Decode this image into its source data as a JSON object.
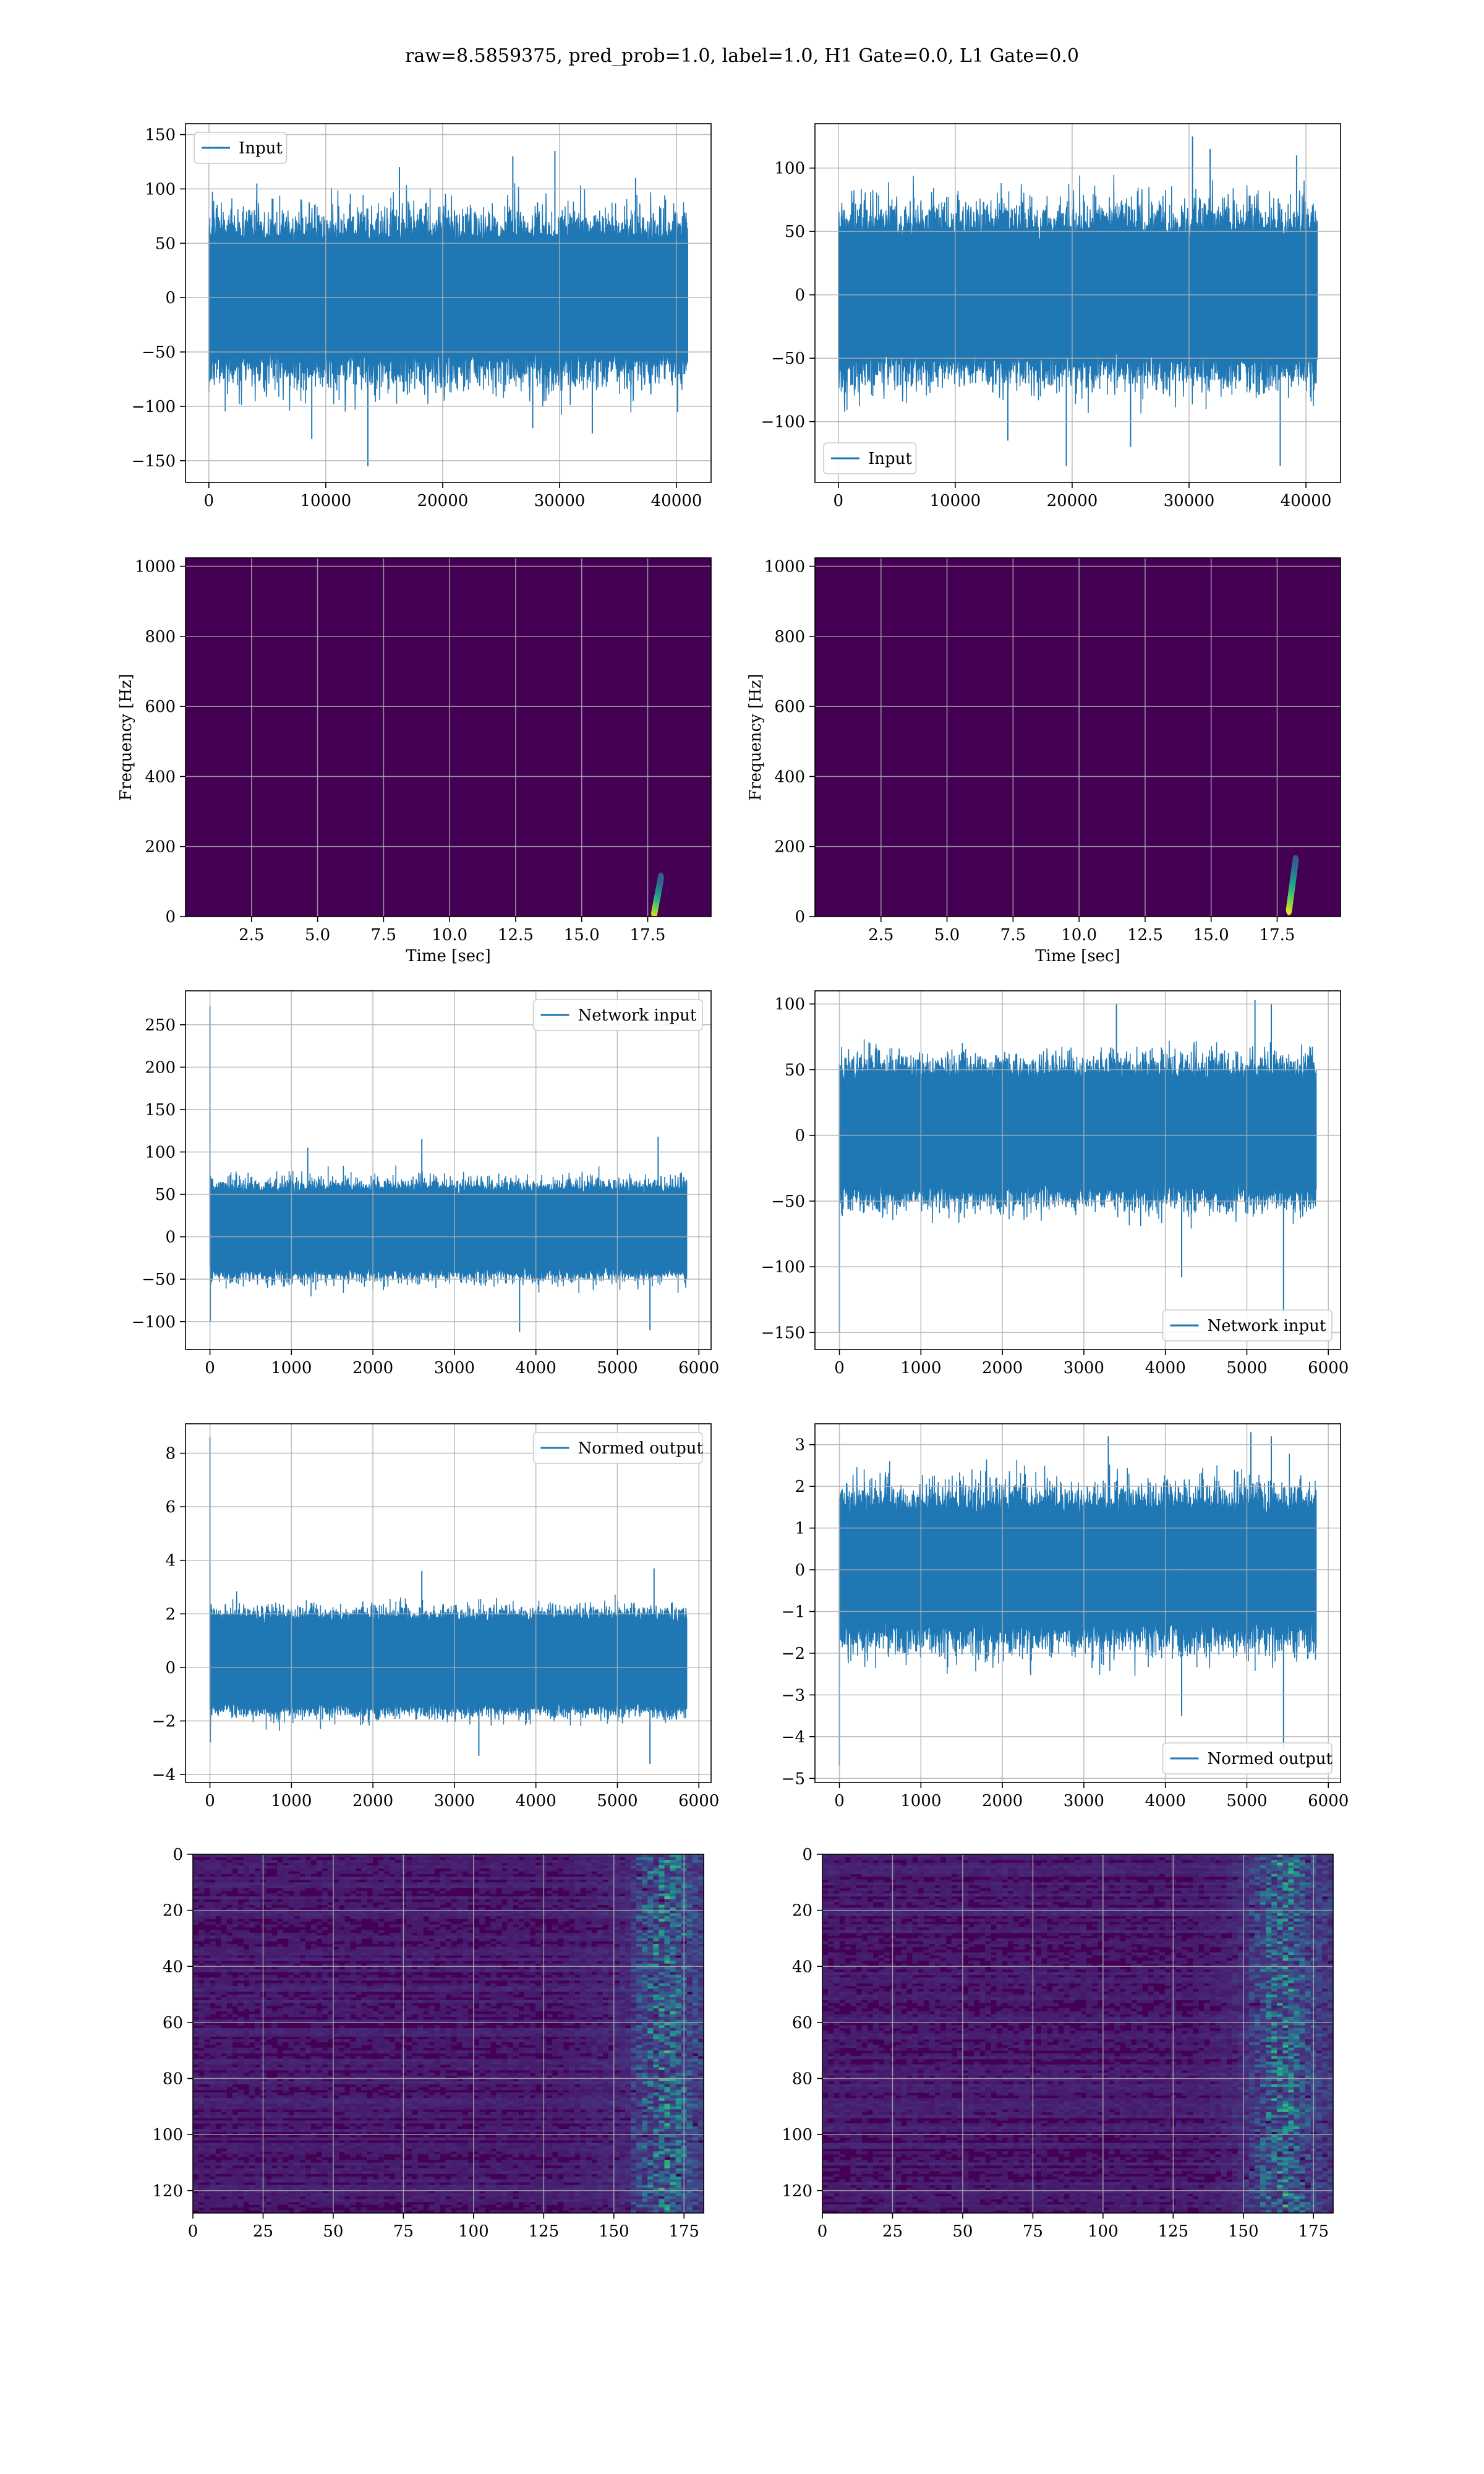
{
  "figure": {
    "suptitle": "raw=8.5859375, pred_prob=1.0, label=1.0, H1 Gate=0.0, L1 Gate=0.0",
    "colors": {
      "line": "#1f77b4",
      "grid": "#b0b0b0",
      "spine": "#000000",
      "heat_bg": "#440154"
    }
  },
  "chart_data": [
    {
      "id": "h1-input",
      "type": "line",
      "title": "",
      "xlabel": "",
      "ylabel": "",
      "legend": {
        "entries": [
          "Input"
        ],
        "placement": "upper left"
      },
      "xlim": [
        -2000,
        42960
      ],
      "ylim": [
        -170,
        160
      ],
      "xticks": [
        0,
        10000,
        20000,
        30000,
        40000
      ],
      "xticklabels": [
        "0",
        "10000",
        "20000",
        "30000",
        "40000"
      ],
      "yticks": [
        -150,
        -100,
        -50,
        0,
        50,
        100,
        150
      ],
      "yticklabels": [
        "−150",
        "−100",
        "−50",
        "0",
        "50",
        "100",
        "150"
      ],
      "grid": true,
      "series": [
        {
          "name": "Input",
          "x_range": [
            0,
            40960
          ],
          "samples": 40960,
          "band": [
            -60,
            60
          ],
          "typical_peak": 95,
          "spikes": [
            [
              4100,
              105
            ],
            [
              8800,
              -130
            ],
            [
              13600,
              -155
            ],
            [
              16300,
              120
            ],
            [
              26000,
              130
            ],
            [
              27700,
              -120
            ],
            [
              29600,
              135
            ],
            [
              32800,
              -125
            ],
            [
              36500,
              110
            ],
            [
              40100,
              -105
            ]
          ]
        }
      ]
    },
    {
      "id": "l1-input",
      "type": "line",
      "title": "",
      "xlabel": "",
      "ylabel": "",
      "legend": {
        "entries": [
          "Input"
        ],
        "placement": "lower left"
      },
      "xlim": [
        -2000,
        42960
      ],
      "ylim": [
        -148,
        135
      ],
      "xticks": [
        0,
        10000,
        20000,
        30000,
        40000
      ],
      "xticklabels": [
        "0",
        "10000",
        "20000",
        "30000",
        "40000"
      ],
      "yticks": [
        -100,
        -50,
        0,
        50,
        100
      ],
      "yticklabels": [
        "−100",
        "−50",
        "0",
        "50",
        "100"
      ],
      "grid": true,
      "series": [
        {
          "name": "Input",
          "x_range": [
            0,
            40960
          ],
          "samples": 40960,
          "band": [
            -55,
            55
          ],
          "typical_peak": 85,
          "spikes": [
            [
              14500,
              -115
            ],
            [
              19500,
              -135
            ],
            [
              25000,
              -120
            ],
            [
              30300,
              125
            ],
            [
              31800,
              115
            ],
            [
              37800,
              -135
            ],
            [
              39200,
              110
            ]
          ]
        }
      ]
    },
    {
      "id": "h1-spectrogram",
      "type": "heatmap",
      "title": "",
      "xlabel": "Time [sec]",
      "ylabel": "Frequency [Hz]",
      "colormap": "viridis",
      "xlim": [
        0,
        19.9
      ],
      "ylim": [
        0,
        1024
      ],
      "xticks": [
        2.5,
        5.0,
        7.5,
        10.0,
        12.5,
        15.0,
        17.5
      ],
      "xticklabels": [
        "2.5",
        "5.0",
        "7.5",
        "10.0",
        "12.5",
        "15.0",
        "17.5"
      ],
      "yticks": [
        0,
        200,
        400,
        600,
        800,
        1000
      ],
      "yticklabels": [
        "0",
        "200",
        "400",
        "600",
        "800",
        "1000"
      ],
      "grid": true,
      "chirp": {
        "t": 18.0,
        "f_start": 10,
        "f_end": 110
      }
    },
    {
      "id": "l1-spectrogram",
      "type": "heatmap",
      "title": "",
      "xlabel": "Time [sec]",
      "ylabel": "Frequency [Hz]",
      "colormap": "viridis",
      "xlim": [
        0,
        19.9
      ],
      "ylim": [
        0,
        1024
      ],
      "xticks": [
        2.5,
        5.0,
        7.5,
        10.0,
        12.5,
        15.0,
        17.5
      ],
      "xticklabels": [
        "2.5",
        "5.0",
        "7.5",
        "10.0",
        "12.5",
        "15.0",
        "17.5"
      ],
      "yticks": [
        0,
        200,
        400,
        600,
        800,
        1000
      ],
      "yticklabels": [
        "0",
        "200",
        "400",
        "600",
        "800",
        "1000"
      ],
      "grid": true,
      "chirp": {
        "t": 18.2,
        "f_start": 20,
        "f_end": 160
      }
    },
    {
      "id": "h1-network-input",
      "type": "line",
      "title": "",
      "xlabel": "",
      "ylabel": "",
      "legend": {
        "entries": [
          "Network input"
        ],
        "placement": "upper right"
      },
      "xlim": [
        -300,
        6150
      ],
      "ylim": [
        -133,
        290
      ],
      "xticks": [
        0,
        1000,
        2000,
        3000,
        4000,
        5000,
        6000
      ],
      "xticklabels": [
        "0",
        "1000",
        "2000",
        "3000",
        "4000",
        "5000",
        "6000"
      ],
      "yticks": [
        -100,
        -50,
        0,
        50,
        100,
        150,
        200,
        250
      ],
      "yticklabels": [
        "−100",
        "−50",
        "0",
        "50",
        "100",
        "150",
        "200",
        "250"
      ],
      "grid": true,
      "series": [
        {
          "name": "Network input",
          "x_range": [
            0,
            5850
          ],
          "samples": 5850,
          "band": [
            -45,
            60
          ],
          "typical_peak": 75,
          "spikes": [
            [
              0,
              272
            ],
            [
              5,
              -100
            ],
            [
              1200,
              105
            ],
            [
              2600,
              115
            ],
            [
              3800,
              -112
            ],
            [
              5500,
              118
            ],
            [
              5400,
              -110
            ]
          ]
        }
      ]
    },
    {
      "id": "l1-network-input",
      "type": "line",
      "title": "",
      "xlabel": "",
      "ylabel": "",
      "legend": {
        "entries": [
          "Network input"
        ],
        "placement": "lower right"
      },
      "xlim": [
        -300,
        6150
      ],
      "ylim": [
        -163,
        110
      ],
      "xticks": [
        0,
        1000,
        2000,
        3000,
        4000,
        5000,
        6000
      ],
      "xticklabels": [
        "0",
        "1000",
        "2000",
        "3000",
        "4000",
        "5000",
        "6000"
      ],
      "yticks": [
        -150,
        -100,
        -50,
        0,
        50,
        100
      ],
      "yticklabels": [
        "−150",
        "−100",
        "−50",
        "0",
        "50",
        "100"
      ],
      "grid": true,
      "series": [
        {
          "name": "Network input",
          "x_range": [
            0,
            5850
          ],
          "samples": 5850,
          "band": [
            -45,
            50
          ],
          "typical_peak": 70,
          "spikes": [
            [
              0,
              -150
            ],
            [
              3400,
              100
            ],
            [
              4200,
              -108
            ],
            [
              5100,
              103
            ],
            [
              5300,
              100
            ],
            [
              5450,
              -135
            ]
          ]
        }
      ]
    },
    {
      "id": "h1-normed-output",
      "type": "line",
      "title": "",
      "xlabel": "",
      "ylabel": "",
      "legend": {
        "entries": [
          "Normed output"
        ],
        "placement": "upper right"
      },
      "xlim": [
        -300,
        6150
      ],
      "ylim": [
        -4.3,
        9.1
      ],
      "xticks": [
        0,
        1000,
        2000,
        3000,
        4000,
        5000,
        6000
      ],
      "xticklabels": [
        "0",
        "1000",
        "2000",
        "3000",
        "4000",
        "5000",
        "6000"
      ],
      "yticks": [
        -4,
        -2,
        0,
        2,
        4,
        6,
        8
      ],
      "yticklabels": [
        "−4",
        "−2",
        "0",
        "2",
        "4",
        "6",
        "8"
      ],
      "grid": true,
      "series": [
        {
          "name": "Normed output",
          "x_range": [
            0,
            5850
          ],
          "samples": 5850,
          "band": [
            -1.6,
            2.0
          ],
          "typical_peak": 2.5,
          "spikes": [
            [
              0,
              8.6
            ],
            [
              5,
              -2.8
            ],
            [
              2600,
              3.6
            ],
            [
              3300,
              -3.3
            ],
            [
              5450,
              3.7
            ],
            [
              5400,
              -3.6
            ]
          ]
        }
      ]
    },
    {
      "id": "l1-normed-output",
      "type": "line",
      "title": "",
      "xlabel": "",
      "ylabel": "",
      "legend": {
        "entries": [
          "Normed output"
        ],
        "placement": "lower right"
      },
      "xlim": [
        -300,
        6150
      ],
      "ylim": [
        -5.1,
        3.5
      ],
      "xticks": [
        0,
        1000,
        2000,
        3000,
        4000,
        5000,
        6000
      ],
      "xticklabels": [
        "0",
        "1000",
        "2000",
        "3000",
        "4000",
        "5000",
        "6000"
      ],
      "yticks": [
        -5,
        -4,
        -3,
        -2,
        -1,
        0,
        1,
        2,
        3
      ],
      "yticklabels": [
        "−5",
        "−4",
        "−3",
        "−2",
        "−1",
        "0",
        "1",
        "2",
        "3"
      ],
      "grid": true,
      "series": [
        {
          "name": "Normed output",
          "x_range": [
            0,
            5850
          ],
          "samples": 5850,
          "band": [
            -1.5,
            1.6
          ],
          "typical_peak": 2.4,
          "spikes": [
            [
              0,
              -4.7
            ],
            [
              3300,
              3.2
            ],
            [
              4200,
              -3.5
            ],
            [
              5050,
              3.3
            ],
            [
              5450,
              -4.3
            ],
            [
              5300,
              3.2
            ]
          ]
        }
      ]
    },
    {
      "id": "h1-feature-map",
      "type": "heatmap",
      "title": "",
      "xlabel": "",
      "ylabel": "",
      "colormap": "viridis",
      "y_inverted": true,
      "xlim": [
        0,
        182
      ],
      "ylim": [
        128,
        0
      ],
      "xticks": [
        0,
        25,
        50,
        75,
        100,
        125,
        150,
        175
      ],
      "xticklabels": [
        "0",
        "25",
        "50",
        "75",
        "100",
        "125",
        "150",
        "175"
      ],
      "yticks": [
        0,
        20,
        40,
        60,
        80,
        100,
        120
      ],
      "yticklabels": [
        "0",
        "20",
        "40",
        "60",
        "80",
        "100",
        "120"
      ],
      "grid": true,
      "hot_columns": [
        155,
        180
      ],
      "hot_center": 167
    },
    {
      "id": "l1-feature-map",
      "type": "heatmap",
      "title": "",
      "xlabel": "",
      "ylabel": "",
      "colormap": "viridis",
      "y_inverted": true,
      "xlim": [
        0,
        182
      ],
      "ylim": [
        128,
        0
      ],
      "xticks": [
        0,
        25,
        50,
        75,
        100,
        125,
        150,
        175
      ],
      "xticklabels": [
        "0",
        "25",
        "50",
        "75",
        "100",
        "125",
        "150",
        "175"
      ],
      "yticks": [
        0,
        20,
        40,
        60,
        80,
        100,
        120
      ],
      "yticklabels": [
        "0",
        "20",
        "40",
        "60",
        "80",
        "100",
        "120"
      ],
      "grid": true,
      "hot_columns": [
        145,
        182
      ],
      "hot_center": 163
    }
  ]
}
